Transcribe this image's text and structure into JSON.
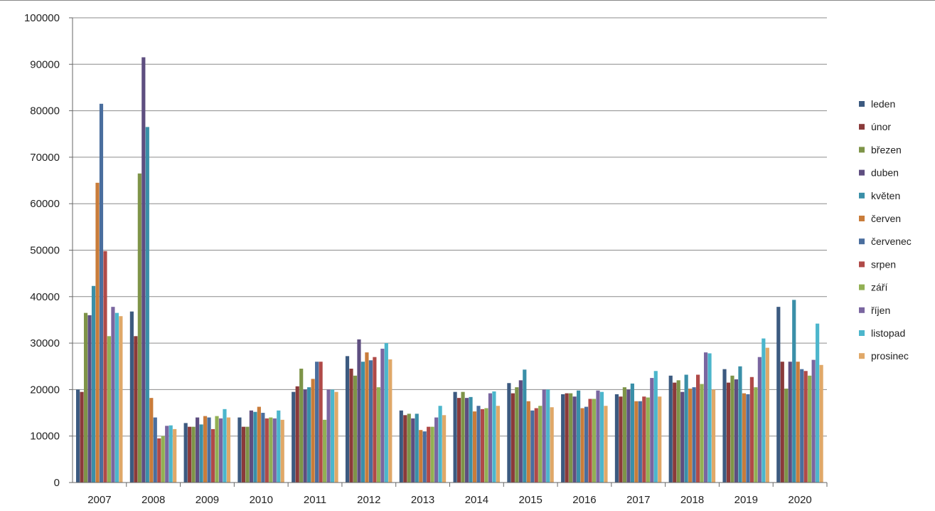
{
  "chart_data": {
    "type": "bar",
    "title": "",
    "xlabel": "",
    "ylabel": "",
    "ylim": [
      0,
      100000
    ],
    "yticks": [
      0,
      10000,
      20000,
      30000,
      40000,
      50000,
      60000,
      70000,
      80000,
      90000,
      100000
    ],
    "grid": true,
    "legend_position": "right",
    "categories": [
      "2007",
      "2008",
      "2009",
      "2010",
      "2011",
      "2012",
      "2013",
      "2014",
      "2015",
      "2016",
      "2017",
      "2018",
      "2019",
      "2020"
    ],
    "series": [
      {
        "name": "leden",
        "color": "#3c5a80",
        "values": [
          20000,
          36800,
          12800,
          14000,
          19500,
          27200,
          15500,
          19500,
          21400,
          19000,
          19000,
          23000,
          24400,
          37800
        ]
      },
      {
        "name": "únor",
        "color": "#8a3a3a",
        "values": [
          19500,
          31500,
          12000,
          12000,
          20700,
          24500,
          14500,
          18200,
          19200,
          19200,
          18500,
          21500,
          21500,
          26000
        ]
      },
      {
        "name": "březen",
        "color": "#7e9448",
        "values": [
          36500,
          66500,
          12000,
          12000,
          24500,
          23000,
          14800,
          19500,
          20500,
          19200,
          20500,
          22000,
          23000,
          20200
        ]
      },
      {
        "name": "duben",
        "color": "#5e4e80",
        "values": [
          36000,
          91500,
          14000,
          15500,
          20000,
          30800,
          13800,
          18200,
          22000,
          18500,
          20000,
          19500,
          22200,
          26000
        ]
      },
      {
        "name": "květen",
        "color": "#3a8fa8",
        "values": [
          42300,
          76500,
          12500,
          15200,
          20500,
          26000,
          14800,
          18400,
          24300,
          19800,
          21300,
          23200,
          25000,
          39300
        ]
      },
      {
        "name": "červen",
        "color": "#c97c3a",
        "values": [
          64500,
          18200,
          14300,
          16300,
          22300,
          28000,
          11300,
          15300,
          17500,
          16000,
          17500,
          20200,
          19200,
          26000
        ]
      },
      {
        "name": "červenec",
        "color": "#4a6e9e",
        "values": [
          81500,
          14000,
          14000,
          15000,
          26000,
          26300,
          11000,
          16500,
          15500,
          16300,
          17500,
          20500,
          19000,
          24400
        ]
      },
      {
        "name": "srpen",
        "color": "#b04a48",
        "values": [
          49800,
          9500,
          11500,
          13800,
          26000,
          27000,
          12000,
          15800,
          16000,
          18000,
          18500,
          23200,
          22700,
          24000
        ]
      },
      {
        "name": "září",
        "color": "#92b054",
        "values": [
          31500,
          10000,
          14300,
          14000,
          13500,
          20500,
          12000,
          16000,
          16500,
          18000,
          18300,
          21200,
          20500,
          23000
        ]
      },
      {
        "name": "říjen",
        "color": "#7a66a0",
        "values": [
          37800,
          12200,
          13800,
          13800,
          20000,
          28800,
          14000,
          19200,
          20000,
          19800,
          22500,
          28000,
          27000,
          26400
        ]
      },
      {
        "name": "listopad",
        "color": "#4cb6cc",
        "values": [
          36500,
          12300,
          15800,
          15500,
          20000,
          30000,
          16500,
          19600,
          20000,
          19500,
          24000,
          27800,
          31000,
          34200
        ]
      },
      {
        "name": "prosinec",
        "color": "#e0a868",
        "values": [
          35800,
          11500,
          14000,
          13500,
          19500,
          26500,
          14500,
          16500,
          16200,
          16500,
          18500,
          20000,
          29000,
          25300
        ]
      }
    ]
  }
}
